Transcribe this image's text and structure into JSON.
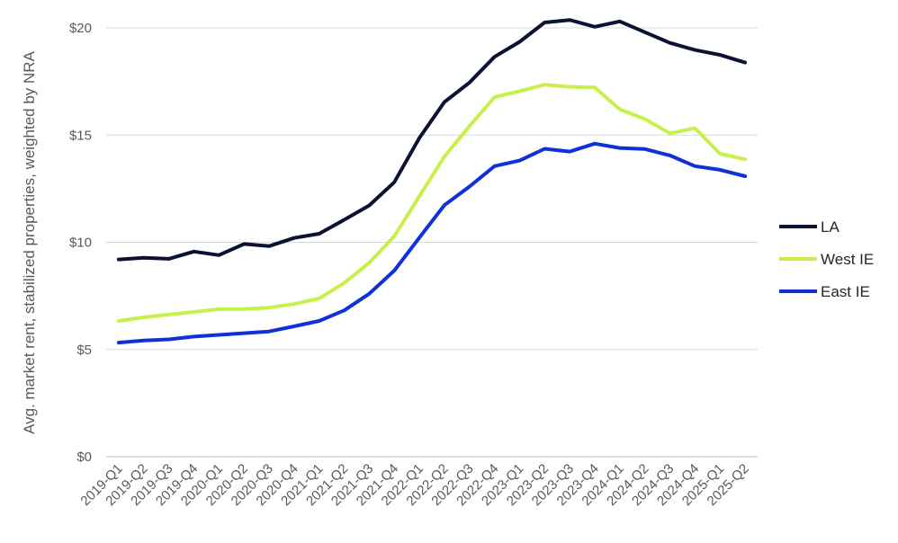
{
  "chart_data": {
    "type": "line",
    "title": "",
    "xlabel": "",
    "ylabel": "Avg. market rent, stabilized properties, weighted by NRA",
    "ylim": [
      0,
      20
    ],
    "yticks": [
      "$0",
      "$5",
      "$10",
      "$15",
      "$20"
    ],
    "ytick_values": [
      0,
      5,
      10,
      15,
      20
    ],
    "grid": "horizontal",
    "legend_position": "right",
    "categories": [
      "2019-Q1",
      "2019-Q2",
      "2019-Q3",
      "2019-Q4",
      "2020-Q1",
      "2020-Q2",
      "2020-Q3",
      "2020-Q4",
      "2021-Q1",
      "2021-Q2",
      "2021-Q3",
      "2021-Q4",
      "2022-Q1",
      "2022-Q2",
      "2022-Q3",
      "2022-Q4",
      "2023-Q1",
      "2023-Q2",
      "2023-Q3",
      "2023-Q4",
      "2024-Q1",
      "2024-Q2",
      "2024-Q3",
      "2024-Q4",
      "2025-Q1",
      "2025-Q2"
    ],
    "series": [
      {
        "name": "LA",
        "color": "#0b1233",
        "values": [
          9.2,
          9.28,
          9.23,
          9.57,
          9.4,
          9.92,
          9.82,
          10.2,
          10.4,
          11.05,
          11.72,
          12.8,
          14.87,
          16.54,
          17.45,
          18.65,
          19.35,
          20.25,
          20.37,
          20.05,
          20.3,
          19.8,
          19.3,
          18.97,
          18.74,
          18.38
        ]
      },
      {
        "name": "West IE",
        "color": "#c8f04a",
        "values": [
          6.33,
          6.5,
          6.63,
          6.75,
          6.88,
          6.88,
          6.95,
          7.12,
          7.38,
          8.1,
          9.05,
          10.28,
          12.15,
          14.0,
          15.42,
          16.77,
          17.05,
          17.35,
          17.25,
          17.22,
          16.2,
          15.75,
          15.08,
          15.32,
          14.13,
          13.87
        ]
      },
      {
        "name": "East IE",
        "color": "#1030d8",
        "values": [
          5.32,
          5.42,
          5.47,
          5.6,
          5.68,
          5.76,
          5.84,
          6.08,
          6.33,
          6.82,
          7.6,
          8.68,
          10.22,
          11.73,
          12.6,
          13.55,
          13.81,
          14.36,
          14.23,
          14.6,
          14.4,
          14.35,
          14.05,
          13.55,
          13.38,
          13.08
        ]
      }
    ]
  }
}
